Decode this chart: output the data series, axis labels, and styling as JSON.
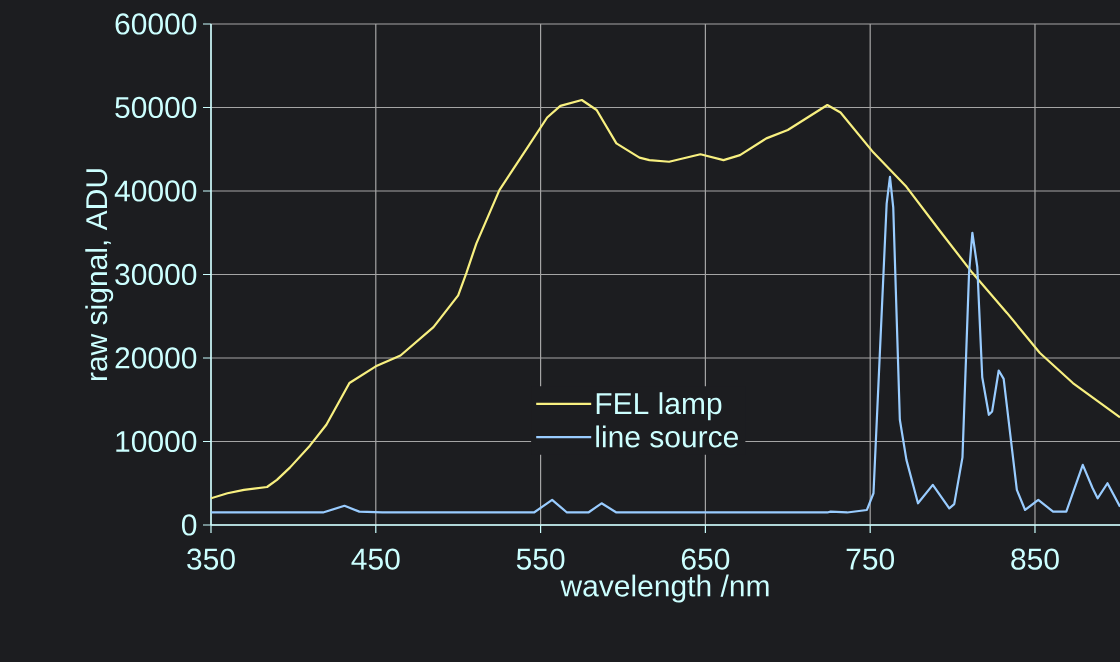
{
  "chart_data": {
    "type": "line",
    "xlabel": "wavelength /nm",
    "ylabel": "raw signal, ADU",
    "xlim": [
      350,
      901.6
    ],
    "ylim": [
      0,
      60000
    ],
    "xticks": [
      350,
      450,
      550,
      650,
      750,
      850
    ],
    "yticks": [
      0,
      10000,
      20000,
      30000,
      40000,
      50000,
      60000
    ],
    "grid": true,
    "legend": "bottom",
    "series": [
      {
        "name": "FEL lamp",
        "color": "#f8f080",
        "x": [
          350,
          360,
          370,
          384,
          390,
          398,
          410,
          420,
          434,
          450,
          465,
          485,
          500,
          505,
          511,
          525,
          542,
          554,
          562,
          575,
          584,
          596,
          610,
          616,
          628,
          647,
          661,
          671,
          687,
          700,
          712,
          724,
          732,
          752,
          772,
          792,
          812,
          833,
          853,
          873,
          901.6
        ],
        "values": [
          3200,
          3800,
          4200,
          4550,
          5400,
          6900,
          9500,
          12000,
          17000,
          19000,
          20300,
          23700,
          27500,
          30200,
          33700,
          40100,
          45200,
          48800,
          50200,
          50900,
          49700,
          45700,
          44000,
          43700,
          43500,
          44400,
          43700,
          44300,
          46300,
          47300,
          48800,
          50300,
          49400,
          44600,
          40500,
          35300,
          30200,
          25400,
          20600,
          17000,
          12900
        ]
      },
      {
        "name": "line source",
        "color": "#99ccff",
        "x": [
          350,
          418,
          431,
          440,
          454,
          546,
          557,
          566,
          579,
          587,
          596,
          724,
          726,
          736,
          748,
          752,
          760,
          762,
          764,
          768,
          772,
          779,
          788,
          798,
          801,
          806,
          810,
          812,
          815,
          818,
          822,
          824,
          828,
          831,
          839,
          844,
          852,
          861,
          869,
          879,
          885,
          888,
          894,
          901.6
        ],
        "values": [
          1500,
          1500,
          2300,
          1600,
          1500,
          1500,
          3000,
          1500,
          1500,
          2600,
          1500,
          1500,
          1600,
          1500,
          1800,
          3800,
          38500,
          41700,
          38000,
          12600,
          7800,
          2600,
          4800,
          2000,
          2500,
          8100,
          30200,
          35000,
          30900,
          17700,
          13200,
          13600,
          18500,
          17500,
          4200,
          1800,
          3000,
          1600,
          1600,
          7200,
          4400,
          3200,
          5000,
          2200
        ]
      }
    ]
  }
}
